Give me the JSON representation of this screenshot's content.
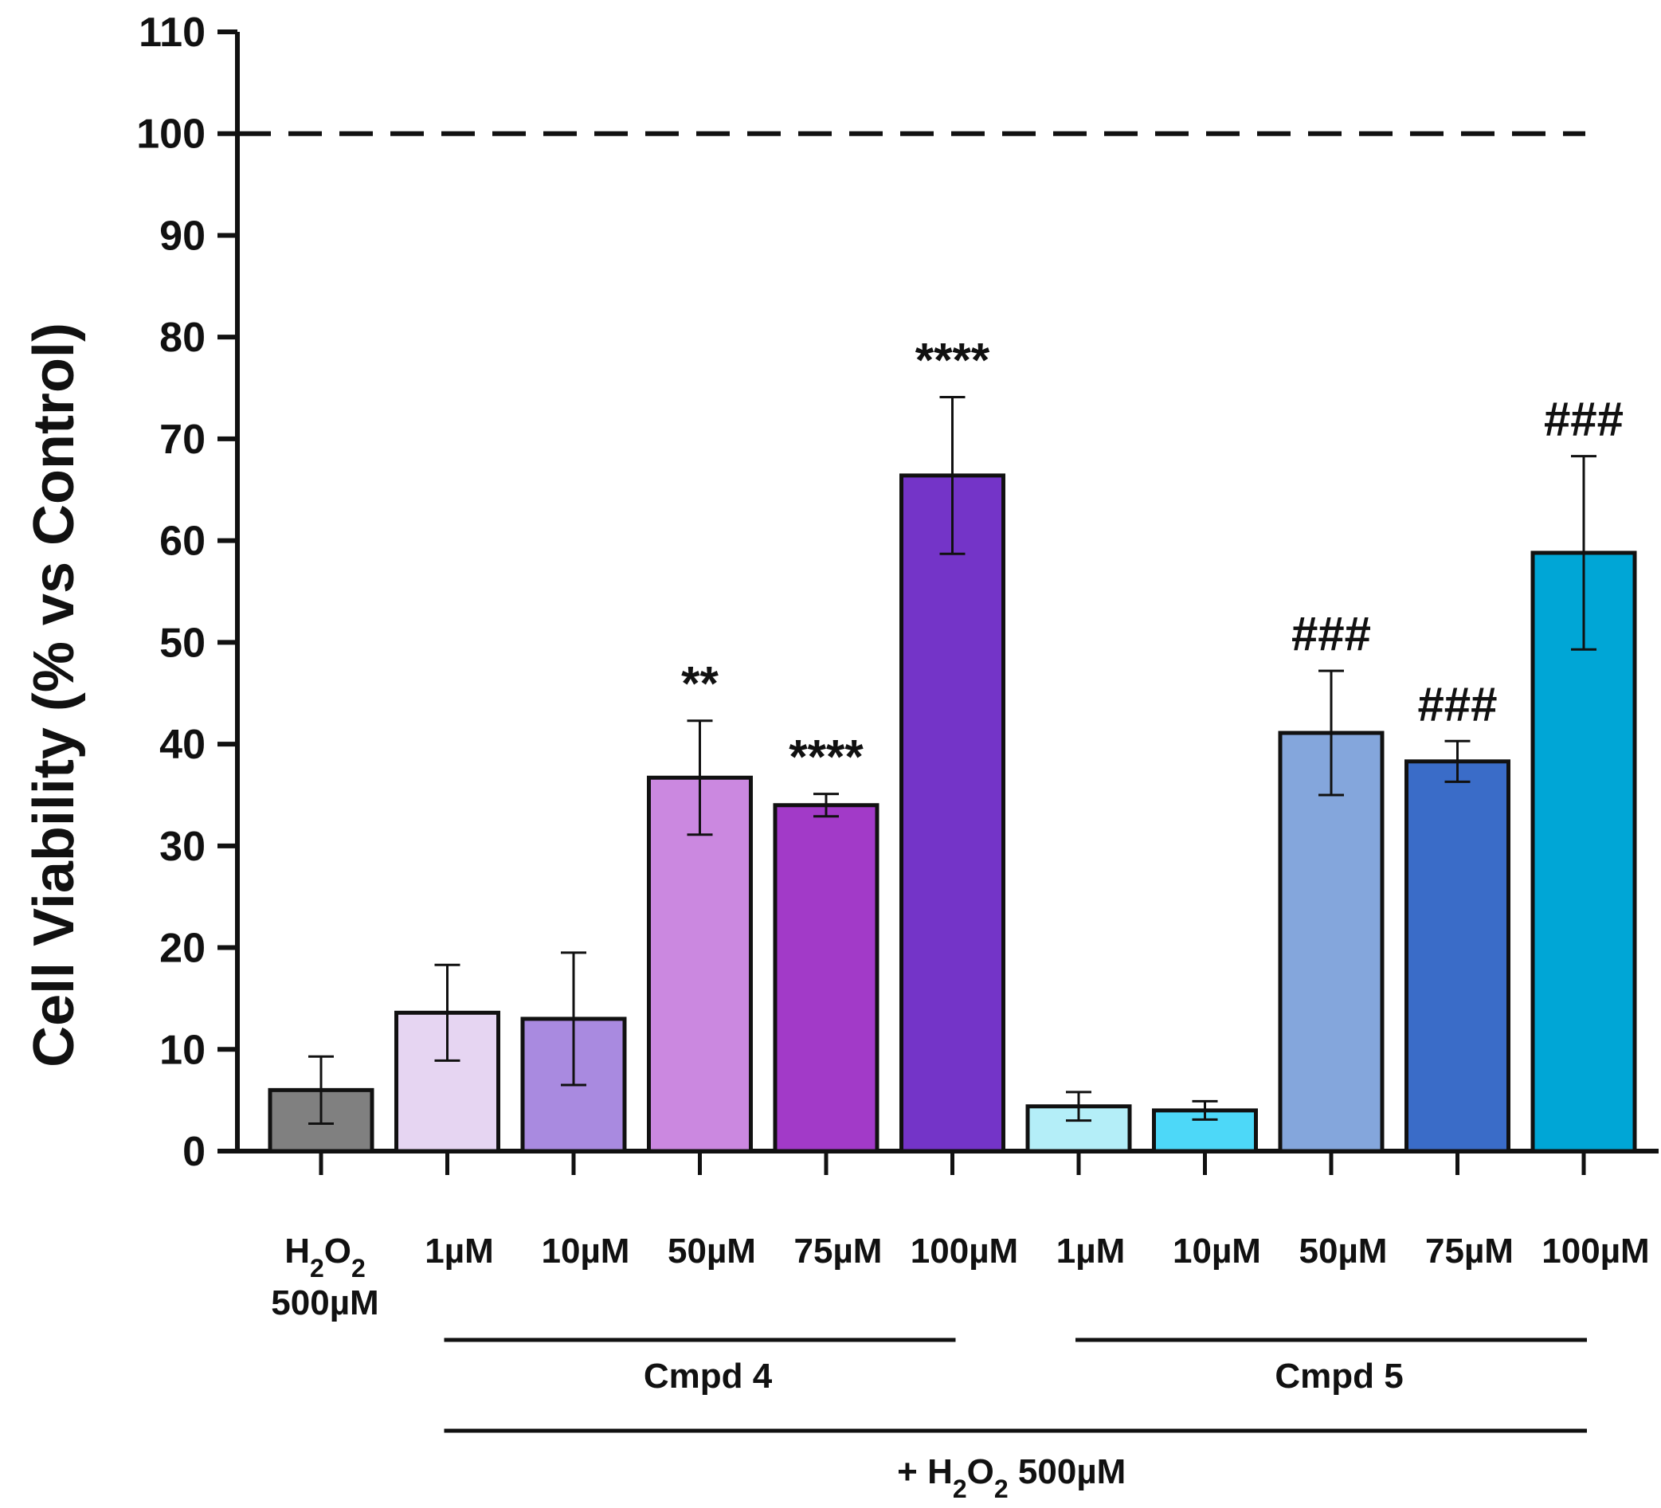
{
  "chart_data": {
    "type": "bar",
    "title": "",
    "xlabel": "",
    "ylabel": "Cell Viability (% vs Control)",
    "ylim": [
      0,
      110
    ],
    "yticks": [
      0,
      10,
      20,
      30,
      40,
      50,
      60,
      70,
      80,
      90,
      100,
      110
    ],
    "reference_line": {
      "value": 100,
      "style": "dashed"
    },
    "bars": [
      {
        "name": "bar-h2o2",
        "label_lines": [
          "H₂O₂",
          "500µM"
        ],
        "value": 6.0,
        "error": 3.3,
        "color": "#808080",
        "annotation": ""
      },
      {
        "name": "bar-cmpd4-1",
        "label_lines": [
          "1µM"
        ],
        "value": 13.6,
        "error": 4.7,
        "color": "#e6d5f2",
        "annotation": ""
      },
      {
        "name": "bar-cmpd4-10",
        "label_lines": [
          "10µM"
        ],
        "value": 13.0,
        "error": 6.5,
        "color": "#a98ae0",
        "annotation": ""
      },
      {
        "name": "bar-cmpd4-50",
        "label_lines": [
          "50µM"
        ],
        "value": 36.7,
        "error": 5.6,
        "color": "#cb88e0",
        "annotation": "**"
      },
      {
        "name": "bar-cmpd4-75",
        "label_lines": [
          "75µM"
        ],
        "value": 34.0,
        "error": 1.1,
        "color": "#a23ac8",
        "annotation": "****"
      },
      {
        "name": "bar-cmpd4-100",
        "label_lines": [
          "100µM"
        ],
        "value": 66.4,
        "error": 7.7,
        "color": "#7434c8",
        "annotation": "****"
      },
      {
        "name": "bar-cmpd5-1",
        "label_lines": [
          "1µM"
        ],
        "value": 4.4,
        "error": 1.4,
        "color": "#b4eef8",
        "annotation": ""
      },
      {
        "name": "bar-cmpd5-10",
        "label_lines": [
          "10µM"
        ],
        "value": 4.0,
        "error": 0.9,
        "color": "#4dd8f8",
        "annotation": ""
      },
      {
        "name": "bar-cmpd5-50",
        "label_lines": [
          "50µM"
        ],
        "value": 41.1,
        "error": 6.1,
        "color": "#84a6dc",
        "annotation": "###"
      },
      {
        "name": "bar-cmpd5-75",
        "label_lines": [
          "75µM"
        ],
        "value": 38.3,
        "error": 2.0,
        "color": "#3a6cc8",
        "annotation": "###"
      },
      {
        "name": "bar-cmpd5-100",
        "label_lines": [
          "100µM"
        ],
        "value": 58.8,
        "error": 9.5,
        "color": "#00a6d6",
        "annotation": "###"
      }
    ],
    "groups": [
      {
        "name": "group-cmpd4",
        "label": "Cmpd 4",
        "from_bar": 1,
        "to_bar": 5
      },
      {
        "name": "group-cmpd5",
        "label": "Cmpd 5",
        "from_bar": 6,
        "to_bar": 10
      }
    ],
    "treatment": {
      "label_prefix": "+ H",
      "label_sub1": "2",
      "label_mid": "O",
      "label_sub2": "2",
      "label_suffix": " 500µM",
      "from_bar": 1,
      "to_bar": 10
    }
  }
}
